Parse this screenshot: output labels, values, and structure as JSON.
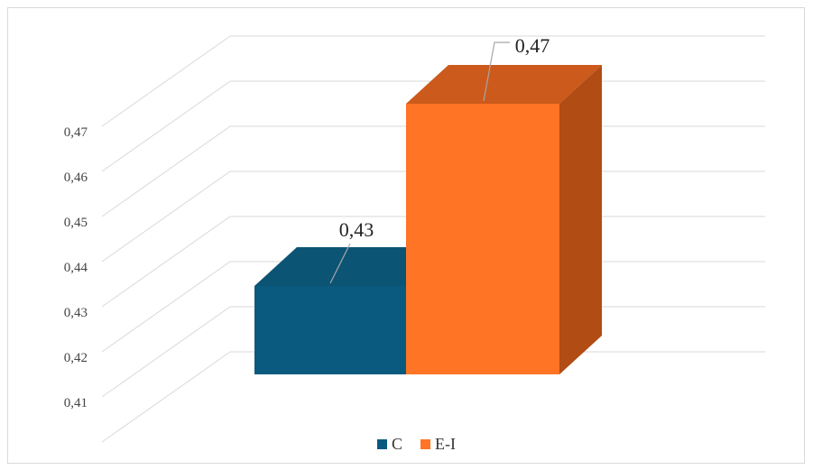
{
  "chart_data": {
    "type": "bar",
    "three_d": true,
    "categories": [
      "C",
      "E-I"
    ],
    "values": [
      0.43,
      0.47
    ],
    "data_labels": [
      "0,43",
      "0,47"
    ],
    "y_ticks": [
      "0,41",
      "0,42",
      "0,43",
      "0,44",
      "0,45",
      "0,46",
      "0,47"
    ],
    "ylim": [
      0.41,
      0.47
    ],
    "grid": true,
    "legend": {
      "position": "bottom",
      "entries": [
        {
          "label": "C",
          "color": "#0a5a7f"
        },
        {
          "label": "E-I",
          "color": "#ff7425"
        }
      ]
    },
    "colors": {
      "c_front": "#0a5a7f",
      "c_top": "#0c5474",
      "c_side": "#08455f",
      "ei_front": "#ff7425",
      "ei_top": "#cc5a1c",
      "ei_side": "#b04c14"
    }
  }
}
